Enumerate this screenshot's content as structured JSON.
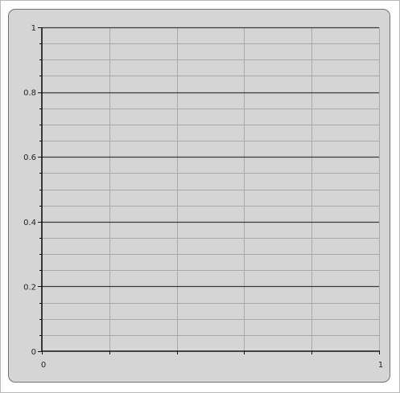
{
  "chart_data": {
    "type": "scatter",
    "title": "",
    "xlabel": "",
    "ylabel": "",
    "xlim": [
      0,
      1
    ],
    "ylim": [
      0,
      1
    ],
    "x_ticks": [
      "0",
      "1"
    ],
    "y_ticks": [
      "0",
      "0.2",
      "0.4",
      "0.6",
      "0.8",
      "1"
    ],
    "y_major_step": 0.2,
    "y_minor_step": 0.05,
    "x_grid_step": 0.2,
    "grid": true,
    "series": []
  },
  "colors": {
    "panel_background": "#d5d5d5",
    "panel_border": "#737373",
    "major_gridline": "#3a3a3a",
    "minor_gridline": "#a9a9a9",
    "axis_line": "#111111"
  }
}
